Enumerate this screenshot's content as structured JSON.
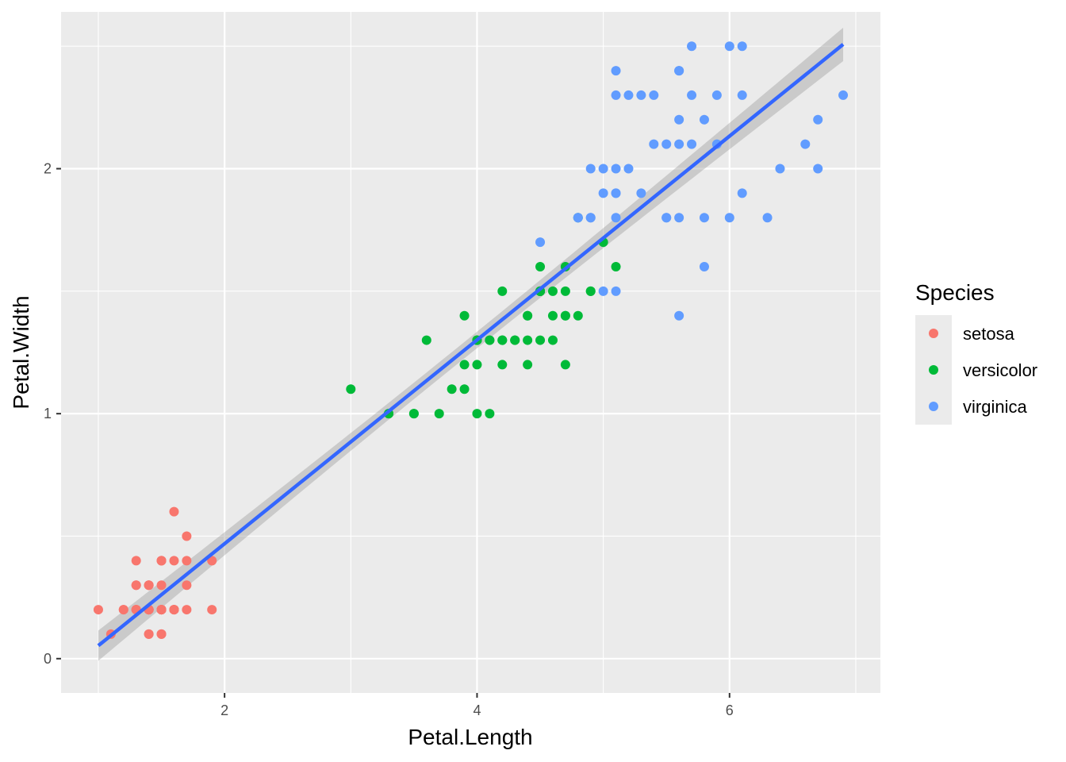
{
  "chart_data": {
    "type": "scatter",
    "xlabel": "Petal.Length",
    "ylabel": "Petal.Width",
    "xlim": [
      0.705,
      7.195
    ],
    "ylim": [
      -0.14,
      2.64
    ],
    "x_ticks": [
      2,
      4,
      6
    ],
    "y_ticks": [
      0,
      1,
      2
    ],
    "grid": true,
    "legend": {
      "title": "Species",
      "position": "right"
    },
    "series": [
      {
        "name": "setosa",
        "color": "#F8766D",
        "points": [
          [
            1.4,
            0.2
          ],
          [
            1.4,
            0.2
          ],
          [
            1.3,
            0.2
          ],
          [
            1.5,
            0.2
          ],
          [
            1.4,
            0.2
          ],
          [
            1.7,
            0.4
          ],
          [
            1.4,
            0.3
          ],
          [
            1.5,
            0.2
          ],
          [
            1.4,
            0.2
          ],
          [
            1.5,
            0.1
          ],
          [
            1.5,
            0.2
          ],
          [
            1.6,
            0.2
          ],
          [
            1.4,
            0.1
          ],
          [
            1.1,
            0.1
          ],
          [
            1.2,
            0.2
          ],
          [
            1.5,
            0.4
          ],
          [
            1.3,
            0.4
          ],
          [
            1.4,
            0.3
          ],
          [
            1.7,
            0.3
          ],
          [
            1.5,
            0.3
          ],
          [
            1.7,
            0.2
          ],
          [
            1.5,
            0.4
          ],
          [
            1.0,
            0.2
          ],
          [
            1.7,
            0.5
          ],
          [
            1.9,
            0.2
          ],
          [
            1.6,
            0.2
          ],
          [
            1.6,
            0.4
          ],
          [
            1.5,
            0.2
          ],
          [
            1.4,
            0.2
          ],
          [
            1.6,
            0.2
          ],
          [
            1.6,
            0.2
          ],
          [
            1.5,
            0.4
          ],
          [
            1.5,
            0.1
          ],
          [
            1.4,
            0.2
          ],
          [
            1.5,
            0.2
          ],
          [
            1.2,
            0.2
          ],
          [
            1.3,
            0.2
          ],
          [
            1.4,
            0.1
          ],
          [
            1.3,
            0.2
          ],
          [
            1.5,
            0.2
          ],
          [
            1.3,
            0.3
          ],
          [
            1.3,
            0.3
          ],
          [
            1.3,
            0.2
          ],
          [
            1.6,
            0.6
          ],
          [
            1.9,
            0.4
          ],
          [
            1.4,
            0.3
          ],
          [
            1.6,
            0.2
          ],
          [
            1.4,
            0.2
          ],
          [
            1.5,
            0.2
          ],
          [
            1.4,
            0.2
          ]
        ]
      },
      {
        "name": "versicolor",
        "color": "#00BA38",
        "points": [
          [
            4.7,
            1.4
          ],
          [
            4.5,
            1.5
          ],
          [
            4.9,
            1.5
          ],
          [
            4.0,
            1.3
          ],
          [
            4.6,
            1.5
          ],
          [
            4.5,
            1.3
          ],
          [
            4.7,
            1.6
          ],
          [
            3.3,
            1.0
          ],
          [
            4.6,
            1.3
          ],
          [
            3.9,
            1.4
          ],
          [
            3.5,
            1.0
          ],
          [
            4.2,
            1.5
          ],
          [
            4.0,
            1.0
          ],
          [
            4.7,
            1.4
          ],
          [
            3.6,
            1.3
          ],
          [
            4.4,
            1.4
          ],
          [
            4.5,
            1.5
          ],
          [
            4.1,
            1.0
          ],
          [
            4.5,
            1.5
          ],
          [
            3.9,
            1.1
          ],
          [
            4.8,
            1.8
          ],
          [
            4.0,
            1.3
          ],
          [
            4.9,
            1.5
          ],
          [
            4.7,
            1.2
          ],
          [
            4.3,
            1.3
          ],
          [
            4.4,
            1.4
          ],
          [
            4.8,
            1.4
          ],
          [
            5.0,
            1.7
          ],
          [
            4.5,
            1.5
          ],
          [
            3.5,
            1.0
          ],
          [
            3.8,
            1.1
          ],
          [
            3.7,
            1.0
          ],
          [
            3.9,
            1.2
          ],
          [
            5.1,
            1.6
          ],
          [
            4.5,
            1.5
          ],
          [
            4.5,
            1.6
          ],
          [
            4.7,
            1.5
          ],
          [
            4.4,
            1.3
          ],
          [
            4.1,
            1.3
          ],
          [
            4.0,
            1.3
          ],
          [
            4.4,
            1.2
          ],
          [
            4.6,
            1.4
          ],
          [
            4.0,
            1.2
          ],
          [
            3.3,
            1.0
          ],
          [
            4.2,
            1.3
          ],
          [
            4.2,
            1.2
          ],
          [
            4.2,
            1.3
          ],
          [
            4.3,
            1.3
          ],
          [
            3.0,
            1.1
          ],
          [
            4.1,
            1.3
          ]
        ]
      },
      {
        "name": "virginica",
        "color": "#619CFF",
        "points": [
          [
            6.0,
            2.5
          ],
          [
            5.1,
            1.9
          ],
          [
            5.9,
            2.1
          ],
          [
            5.6,
            1.8
          ],
          [
            5.8,
            2.2
          ],
          [
            6.6,
            2.1
          ],
          [
            4.5,
            1.7
          ],
          [
            6.3,
            1.8
          ],
          [
            5.8,
            1.8
          ],
          [
            6.1,
            2.5
          ],
          [
            5.1,
            2.0
          ],
          [
            5.3,
            1.9
          ],
          [
            5.5,
            2.1
          ],
          [
            5.0,
            2.0
          ],
          [
            5.1,
            2.4
          ],
          [
            5.3,
            2.3
          ],
          [
            5.5,
            1.8
          ],
          [
            6.7,
            2.2
          ],
          [
            6.9,
            2.3
          ],
          [
            5.0,
            1.5
          ],
          [
            5.7,
            2.3
          ],
          [
            4.9,
            2.0
          ],
          [
            6.7,
            2.0
          ],
          [
            4.9,
            1.8
          ],
          [
            5.7,
            2.1
          ],
          [
            6.0,
            1.8
          ],
          [
            4.8,
            1.8
          ],
          [
            4.9,
            1.8
          ],
          [
            5.6,
            2.1
          ],
          [
            5.8,
            1.6
          ],
          [
            6.1,
            1.9
          ],
          [
            6.4,
            2.0
          ],
          [
            5.6,
            2.2
          ],
          [
            5.1,
            1.5
          ],
          [
            5.6,
            1.4
          ],
          [
            6.1,
            2.3
          ],
          [
            5.6,
            2.4
          ],
          [
            5.5,
            1.8
          ],
          [
            4.8,
            1.8
          ],
          [
            5.4,
            2.1
          ],
          [
            5.6,
            2.4
          ],
          [
            5.1,
            2.3
          ],
          [
            5.1,
            1.9
          ],
          [
            5.9,
            2.3
          ],
          [
            5.7,
            2.5
          ],
          [
            5.2,
            2.3
          ],
          [
            5.0,
            1.9
          ],
          [
            5.2,
            2.0
          ],
          [
            5.4,
            2.3
          ],
          [
            5.1,
            1.8
          ]
        ]
      }
    ],
    "fit": {
      "method": "linear",
      "color": "#3366FF",
      "band_color": "#999999",
      "intercept": -0.363,
      "slope": 0.416,
      "x_range": [
        1.0,
        6.9
      ]
    }
  }
}
